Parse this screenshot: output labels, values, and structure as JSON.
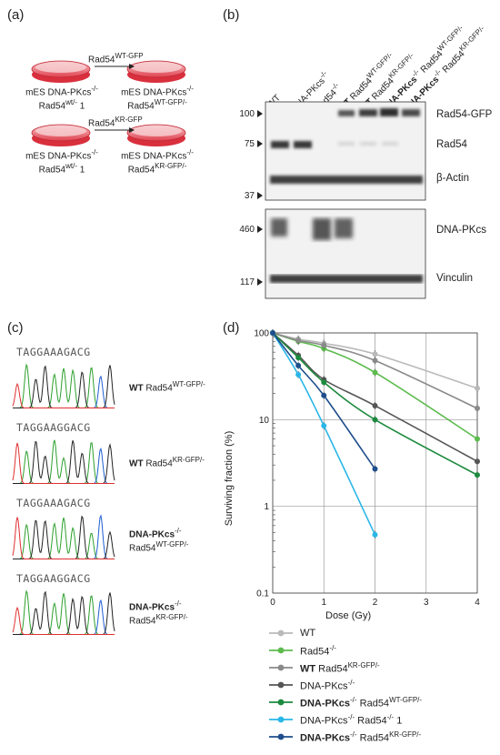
{
  "panel_a": {
    "label": "(a)",
    "row1": {
      "arrow": "Rad54",
      "arrow_sup": "WT-GFP",
      "left_l1": "mES DNA-PKcs",
      "left_l1_sup": "-/-",
      "left_l2": "Rad54",
      "left_l2_sup": "wt/-",
      "left_l2_suffix": " 1",
      "right_l1": "mES DNA-PKcs",
      "right_l1_sup": "-/-",
      "right_l2": "Rad54",
      "right_l2_sup": "WT-GFP/-"
    },
    "row2": {
      "arrow": "Rad54",
      "arrow_sup": "KR-GFP",
      "left_l1": "mES DNA-PKcs",
      "left_l1_sup": "-/-",
      "left_l2": "Rad54",
      "left_l2_sup": "wt/-",
      "left_l2_suffix": " 1",
      "right_l1": "mES DNA-PKcs",
      "right_l1_sup": "-/-",
      "right_l2": "Rad54",
      "right_l2_sup": "KR-GFP/-"
    }
  },
  "panel_b": {
    "label": "(b)",
    "lanes": [
      {
        "bold": "",
        "text": "WT",
        "sup": ""
      },
      {
        "bold": "",
        "text": "DNA-PKcs",
        "sup": "-/-"
      },
      {
        "bold": "",
        "text": "Rad54",
        "sup": "-/-"
      },
      {
        "bold": "WT",
        "text": " Rad54",
        "sup": "WT-GFP/-"
      },
      {
        "bold": "WT",
        "text": " Rad54",
        "sup": "KR-GFP/-"
      },
      {
        "bold": "DNA-PKcs",
        "text": " Rad54",
        "sup": "WT-GFP/-",
        "bsup": "-/-"
      },
      {
        "bold": "DNA-PKcs",
        "text": " Rad54",
        "sup": "KR-GFP/-",
        "bsup": "-/-"
      }
    ],
    "markers_top": [
      "100",
      "75",
      "37"
    ],
    "markers_bottom": [
      "460",
      "117"
    ],
    "band_labels": [
      "Rad54-GFP",
      "Rad54",
      "β-Actin",
      "DNA-PKcs",
      "Vinculin"
    ]
  },
  "panel_c": {
    "label": "(c)",
    "traces": [
      {
        "seq": "TAGGAAAGACG",
        "bold": "WT",
        "text": " Rad54",
        "sup": "WT-GFP/-",
        "l2": ""
      },
      {
        "seq": "TAGGAAGGACG",
        "bold": "WT",
        "text": " Rad54",
        "sup": "KR-GFP/-",
        "l2": ""
      },
      {
        "seq": "TAGGAAAGACG",
        "bold": "DNA-PKcs",
        "text": "",
        "sup": "-/-",
        "l2": "Rad54",
        "l2sup": "WT-GFP/-"
      },
      {
        "seq": "TAGGAAGGACG",
        "bold": "DNA-PKcs",
        "text": "",
        "sup": "-/-",
        "l2": "Rad54",
        "l2sup": "KR-GFP/-"
      }
    ]
  },
  "panel_d": {
    "label": "(d)"
  },
  "chart_data": {
    "type": "line",
    "xlabel": "Dose (Gy)",
    "ylabel": "Surviving fraction (%)",
    "xlim": [
      0,
      4
    ],
    "ylim": [
      0.1,
      100
    ],
    "yscale": "log",
    "xticks": [
      "0",
      "1",
      "2",
      "3",
      "4"
    ],
    "yticks": [
      "0.1",
      "1",
      "10",
      "100"
    ],
    "grid": true,
    "legend_position": "bottom",
    "series": [
      {
        "name": "WT",
        "bold": "",
        "sup": "",
        "color": "#b9b9b9",
        "x": [
          0,
          0.5,
          1,
          2,
          4
        ],
        "y": [
          100,
          85,
          76,
          57,
          23
        ]
      },
      {
        "name": "Rad54",
        "bold": "",
        "sup": "-/-",
        "color": "#5dbb4e",
        "x": [
          0,
          0.5,
          1,
          2,
          4
        ],
        "y": [
          100,
          80,
          66,
          35,
          6
        ]
      },
      {
        "name": " Rad54",
        "bold": "WT",
        "sup": "KR-GFP/-",
        "color": "#8a8a8a",
        "x": [
          0,
          0.5,
          1,
          2,
          4
        ],
        "y": [
          100,
          82,
          72,
          48,
          13.5
        ]
      },
      {
        "name": "DNA-PKcs",
        "bold": "",
        "sup": "-/-",
        "color": "#555555",
        "x": [
          0,
          0.5,
          1,
          2,
          4
        ],
        "y": [
          100,
          55,
          29,
          14.5,
          3.3
        ]
      },
      {
        "name": " Rad54",
        "bold": "DNA-PKcs",
        "bsup": "-/-",
        "sup": "WT-GFP/-",
        "color": "#1c8a3e",
        "x": [
          0,
          0.5,
          1,
          2,
          4
        ],
        "y": [
          100,
          52,
          27,
          10,
          2.3
        ]
      },
      {
        "name": "DNA-PKcs",
        "bold": "",
        "sup": "-/-",
        "name2": " Rad54",
        "sup2": "-/-",
        "suffix": " 1",
        "color": "#29b6e8",
        "x": [
          0,
          0.5,
          1,
          2
        ],
        "y": [
          100,
          33,
          8.5,
          0.47
        ]
      },
      {
        "name": " Rad54",
        "bold": "DNA-PKcs",
        "bsup": "-/-",
        "sup": "KR-GFP/-",
        "color": "#1e4e8c",
        "x": [
          0,
          0.5,
          1,
          2
        ],
        "y": [
          100,
          42,
          19,
          2.7
        ]
      }
    ]
  }
}
